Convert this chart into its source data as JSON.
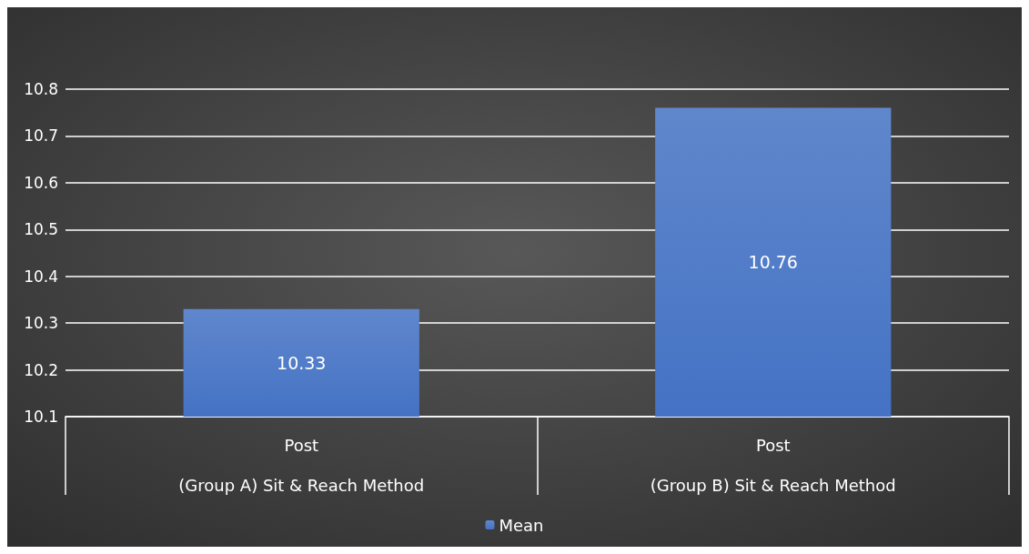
{
  "chart_data": {
    "type": "bar",
    "categories": [
      "Post\n\n(Group A) Sit & Reach Method",
      "Post\n\n(Group B) Sit & Reach Method"
    ],
    "series": [
      {
        "name": "Mean",
        "color": "#4472c4",
        "values": [
          10.33,
          10.76
        ]
      }
    ],
    "ylim": [
      10.1,
      10.8
    ],
    "yticks": [
      10.1,
      10.2,
      10.3,
      10.4,
      10.5,
      10.6,
      10.7,
      10.8
    ],
    "grid": "y",
    "legend": "bottom",
    "data_labels": true
  }
}
